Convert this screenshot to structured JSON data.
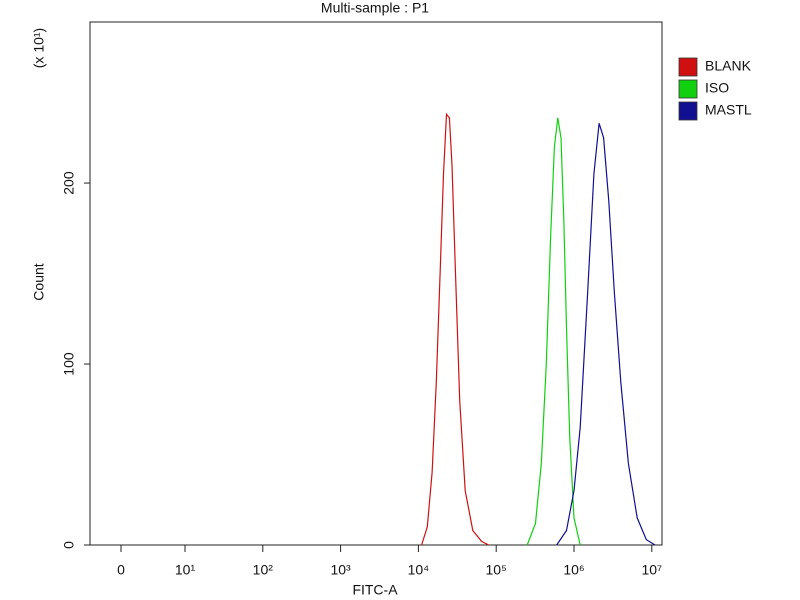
{
  "chart_data": {
    "type": "line",
    "title": "Multi-sample : P1",
    "x_label": "FITC-A",
    "y_label": "Count",
    "y_multiplier": "(x 10¹)",
    "x_scale": "biexponential",
    "xlim": [
      -5,
      13500000
    ],
    "xticks": [
      0,
      {
        "value": 10,
        "label": "10¹"
      },
      {
        "value": 100,
        "label": "10²"
      },
      {
        "value": 1000,
        "label": "10³"
      },
      {
        "value": 10000,
        "label": "10⁴"
      },
      {
        "value": 100000,
        "label": "10⁵"
      },
      {
        "value": 1000000,
        "label": "10⁶"
      },
      {
        "value": 10000000,
        "label": "10⁷"
      }
    ],
    "ylim": [
      0,
      289
    ],
    "yticks": [
      0,
      100,
      200
    ],
    "legend": "right",
    "series": [
      {
        "name": "BLANK",
        "color": "#d01010",
        "x": [
          11000,
          13000,
          15000,
          17000,
          19000,
          21000,
          23000,
          25000,
          27000,
          30000,
          34000,
          40000,
          50000,
          65000,
          80000
        ],
        "values": [
          0,
          10,
          40,
          90,
          150,
          205,
          238,
          236,
          210,
          150,
          80,
          30,
          8,
          2,
          0
        ]
      },
      {
        "name": "ISO",
        "color": "#10d010",
        "x": [
          250000,
          320000,
          380000,
          440000,
          500000,
          560000,
          620000,
          680000,
          740000,
          800000,
          880000,
          1000000,
          1200000
        ],
        "values": [
          0,
          12,
          45,
          100,
          170,
          220,
          236,
          225,
          180,
          120,
          60,
          15,
          0
        ]
      },
      {
        "name": "MASTL",
        "color": "#101090",
        "x": [
          600000,
          800000,
          1000000,
          1200000,
          1500000,
          1800000,
          2100000,
          2400000,
          2800000,
          3300000,
          4000000,
          5000000,
          6500000,
          8500000,
          11000000
        ],
        "values": [
          0,
          8,
          30,
          65,
          140,
          205,
          233,
          225,
          190,
          140,
          90,
          45,
          15,
          3,
          0
        ]
      }
    ]
  }
}
